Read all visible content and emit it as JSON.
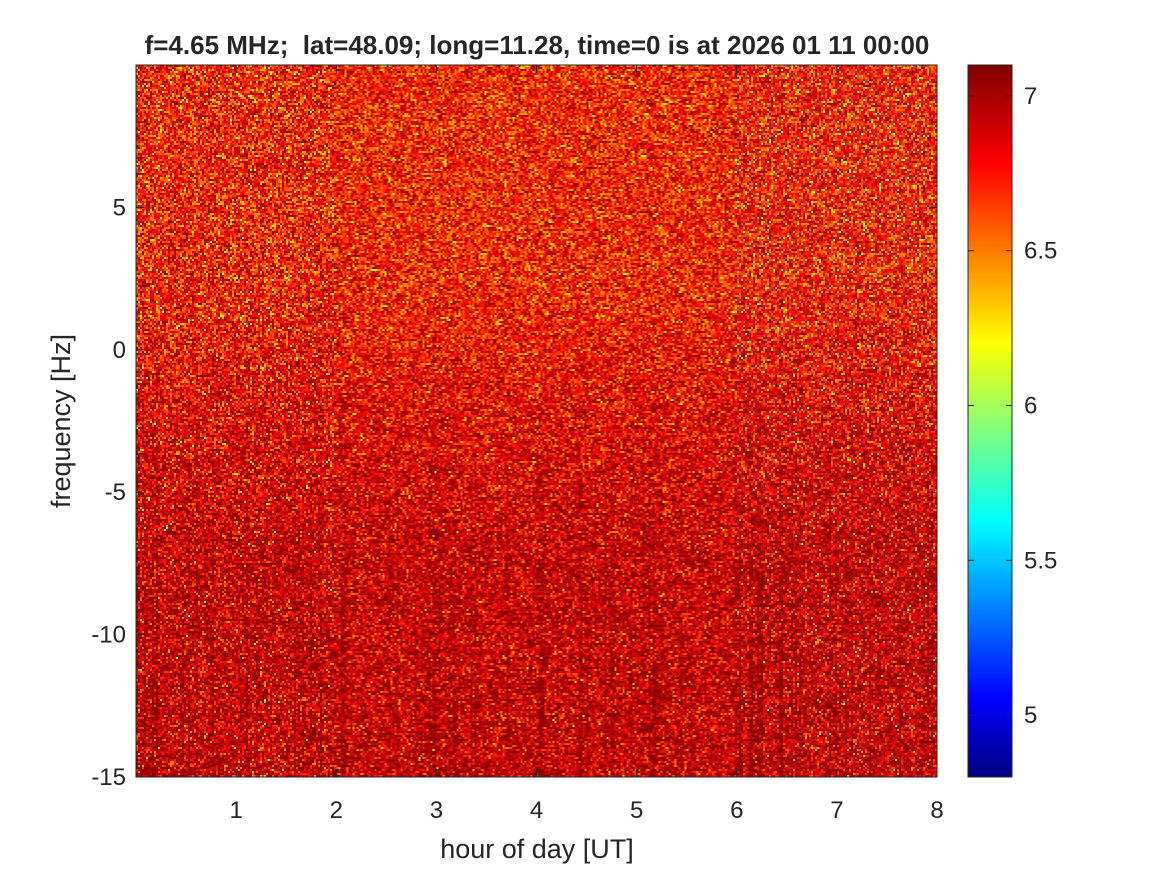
{
  "chart_data": {
    "type": "heatmap",
    "title": "f=4.65 MHz;  lat=48.09; long=11.28, time=0 is at 2026 01 11 00:00",
    "xlabel": "hour of day [UT]",
    "ylabel": "frequency [Hz]",
    "xlim": [
      0,
      8
    ],
    "ylim": [
      -15,
      10
    ],
    "x_ticks": [
      1,
      2,
      3,
      4,
      5,
      6,
      7,
      8
    ],
    "x_tick_labels": [
      "1",
      "2",
      "3",
      "4",
      "5",
      "6",
      "7",
      "8"
    ],
    "y_ticks": [
      -15,
      -10,
      -5,
      0,
      5
    ],
    "y_tick_labels": [
      "-15",
      "-10",
      "-5",
      "0",
      "5"
    ],
    "colorbar": {
      "range": [
        4.8,
        7.1
      ],
      "colormap": "jet",
      "ticks": [
        5,
        5.5,
        6,
        6.5,
        7
      ],
      "tick_labels": [
        "5",
        "5.5",
        "6",
        "6.5",
        "7"
      ]
    },
    "field_description_levels": {
      "upper_band_mean": 6.75,
      "lower_band_mean": 6.95,
      "noise_spread": 0.22
    },
    "grid": false,
    "legend": "none"
  }
}
